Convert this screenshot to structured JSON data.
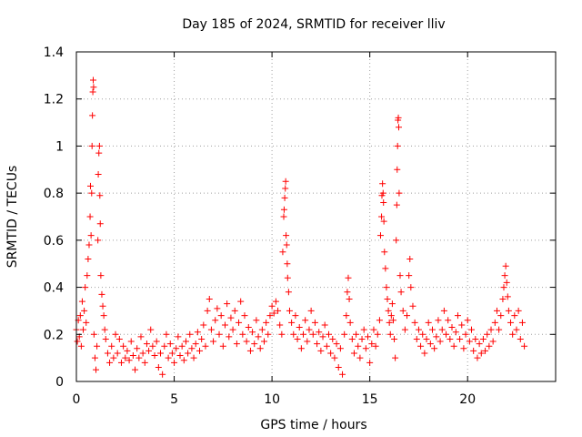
{
  "chart_data": {
    "type": "scatter",
    "title": "Day 185 of 2024, SRMTID for receiver lliv",
    "xlabel": "GPS time / hours",
    "ylabel": "SRMTID / TECUs",
    "xlim": [
      0,
      24.5
    ],
    "ylim": [
      0,
      1.4
    ],
    "xticks": [
      0,
      5,
      10,
      15,
      20
    ],
    "xtick_labels": [
      "0",
      "5",
      "10",
      "15",
      "20"
    ],
    "yticks": [
      0,
      0.2,
      0.4,
      0.6,
      0.8,
      1.0,
      1.2,
      1.4
    ],
    "ytick_labels": [
      "0",
      "0.2",
      "0.4",
      "0.6",
      "0.8",
      "1",
      "1.2",
      "1.4"
    ],
    "grid": true,
    "marker": "+",
    "colors": {
      "series": "#ff0000",
      "grid": "#a0a0a0",
      "axis": "#000000"
    },
    "series": [
      {
        "name": "SRMTID",
        "points": [
          [
            0.0,
            0.22
          ],
          [
            0.05,
            0.17
          ],
          [
            0.1,
            0.26
          ],
          [
            0.15,
            0.19
          ],
          [
            0.2,
            0.28
          ],
          [
            0.25,
            0.15
          ],
          [
            0.3,
            0.34
          ],
          [
            0.35,
            0.22
          ],
          [
            0.4,
            0.3
          ],
          [
            0.45,
            0.4
          ],
          [
            0.5,
            0.25
          ],
          [
            0.55,
            0.45
          ],
          [
            0.6,
            0.52
          ],
          [
            0.65,
            0.58
          ],
          [
            0.7,
            0.7
          ],
          [
            0.72,
            0.83
          ],
          [
            0.75,
            0.62
          ],
          [
            0.78,
            0.8
          ],
          [
            0.8,
            1.0
          ],
          [
            0.82,
            1.13
          ],
          [
            0.84,
            1.23
          ],
          [
            0.86,
            1.28
          ],
          [
            0.88,
            1.25
          ],
          [
            0.9,
            0.2
          ],
          [
            0.95,
            0.1
          ],
          [
            1.0,
            0.05
          ],
          [
            1.05,
            0.15
          ],
          [
            1.1,
            0.6
          ],
          [
            1.12,
            0.88
          ],
          [
            1.15,
            0.97
          ],
          [
            1.18,
            1.0
          ],
          [
            1.2,
            0.79
          ],
          [
            1.22,
            0.67
          ],
          [
            1.25,
            0.45
          ],
          [
            1.3,
            0.37
          ],
          [
            1.35,
            0.32
          ],
          [
            1.4,
            0.28
          ],
          [
            1.45,
            0.22
          ],
          [
            1.5,
            0.18
          ],
          [
            1.6,
            0.12
          ],
          [
            1.7,
            0.08
          ],
          [
            1.8,
            0.15
          ],
          [
            1.9,
            0.1
          ],
          [
            2.0,
            0.2
          ],
          [
            2.1,
            0.12
          ],
          [
            2.2,
            0.18
          ],
          [
            2.3,
            0.08
          ],
          [
            2.4,
            0.15
          ],
          [
            2.5,
            0.1
          ],
          [
            2.6,
            0.13
          ],
          [
            2.7,
            0.09
          ],
          [
            2.8,
            0.17
          ],
          [
            2.9,
            0.11
          ],
          [
            3.0,
            0.05
          ],
          [
            3.1,
            0.14
          ],
          [
            3.2,
            0.1
          ],
          [
            3.3,
            0.19
          ],
          [
            3.4,
            0.12
          ],
          [
            3.5,
            0.08
          ],
          [
            3.6,
            0.16
          ],
          [
            3.7,
            0.13
          ],
          [
            3.8,
            0.22
          ],
          [
            3.9,
            0.15
          ],
          [
            4.0,
            0.11
          ],
          [
            4.1,
            0.17
          ],
          [
            4.2,
            0.06
          ],
          [
            4.3,
            0.12
          ],
          [
            4.4,
            0.03
          ],
          [
            4.5,
            0.15
          ],
          [
            4.6,
            0.2
          ],
          [
            4.7,
            0.1
          ],
          [
            4.8,
            0.16
          ],
          [
            4.9,
            0.12
          ],
          [
            5.0,
            0.08
          ],
          [
            5.1,
            0.14
          ],
          [
            5.2,
            0.19
          ],
          [
            5.3,
            0.11
          ],
          [
            5.4,
            0.15
          ],
          [
            5.5,
            0.09
          ],
          [
            5.6,
            0.17
          ],
          [
            5.7,
            0.12
          ],
          [
            5.8,
            0.2
          ],
          [
            5.9,
            0.14
          ],
          [
            6.0,
            0.1
          ],
          [
            6.1,
            0.16
          ],
          [
            6.2,
            0.21
          ],
          [
            6.3,
            0.13
          ],
          [
            6.4,
            0.18
          ],
          [
            6.5,
            0.24
          ],
          [
            6.6,
            0.15
          ],
          [
            6.7,
            0.3
          ],
          [
            6.8,
            0.35
          ],
          [
            6.9,
            0.22
          ],
          [
            7.0,
            0.17
          ],
          [
            7.1,
            0.26
          ],
          [
            7.2,
            0.31
          ],
          [
            7.3,
            0.2
          ],
          [
            7.4,
            0.28
          ],
          [
            7.5,
            0.15
          ],
          [
            7.6,
            0.24
          ],
          [
            7.7,
            0.33
          ],
          [
            7.8,
            0.19
          ],
          [
            7.9,
            0.27
          ],
          [
            8.0,
            0.22
          ],
          [
            8.1,
            0.3
          ],
          [
            8.2,
            0.16
          ],
          [
            8.3,
            0.25
          ],
          [
            8.4,
            0.34
          ],
          [
            8.5,
            0.2
          ],
          [
            8.6,
            0.28
          ],
          [
            8.7,
            0.17
          ],
          [
            8.8,
            0.23
          ],
          [
            8.9,
            0.13
          ],
          [
            9.0,
            0.21
          ],
          [
            9.1,
            0.16
          ],
          [
            9.2,
            0.26
          ],
          [
            9.3,
            0.19
          ],
          [
            9.4,
            0.14
          ],
          [
            9.5,
            0.22
          ],
          [
            9.6,
            0.17
          ],
          [
            9.7,
            0.25
          ],
          [
            9.8,
            0.2
          ],
          [
            9.9,
            0.28
          ],
          [
            10.0,
            0.32
          ],
          [
            10.1,
            0.29
          ],
          [
            10.2,
            0.34
          ],
          [
            10.3,
            0.3
          ],
          [
            10.4,
            0.24
          ],
          [
            10.5,
            0.2
          ],
          [
            10.55,
            0.55
          ],
          [
            10.6,
            0.7
          ],
          [
            10.62,
            0.73
          ],
          [
            10.65,
            0.78
          ],
          [
            10.68,
            0.82
          ],
          [
            10.7,
            0.85
          ],
          [
            10.72,
            0.62
          ],
          [
            10.75,
            0.58
          ],
          [
            10.78,
            0.5
          ],
          [
            10.8,
            0.44
          ],
          [
            10.85,
            0.38
          ],
          [
            10.9,
            0.3
          ],
          [
            11.0,
            0.25
          ],
          [
            11.1,
            0.2
          ],
          [
            11.2,
            0.28
          ],
          [
            11.3,
            0.18
          ],
          [
            11.4,
            0.23
          ],
          [
            11.5,
            0.14
          ],
          [
            11.6,
            0.2
          ],
          [
            11.7,
            0.26
          ],
          [
            11.8,
            0.17
          ],
          [
            11.9,
            0.22
          ],
          [
            12.0,
            0.3
          ],
          [
            12.1,
            0.2
          ],
          [
            12.2,
            0.25
          ],
          [
            12.3,
            0.16
          ],
          [
            12.4,
            0.21
          ],
          [
            12.5,
            0.13
          ],
          [
            12.6,
            0.19
          ],
          [
            12.7,
            0.24
          ],
          [
            12.8,
            0.15
          ],
          [
            12.9,
            0.2
          ],
          [
            13.0,
            0.12
          ],
          [
            13.1,
            0.18
          ],
          [
            13.2,
            0.1
          ],
          [
            13.3,
            0.16
          ],
          [
            13.4,
            0.06
          ],
          [
            13.5,
            0.14
          ],
          [
            13.6,
            0.03
          ],
          [
            13.7,
            0.2
          ],
          [
            13.8,
            0.28
          ],
          [
            13.85,
            0.38
          ],
          [
            13.9,
            0.44
          ],
          [
            13.95,
            0.35
          ],
          [
            14.0,
            0.25
          ],
          [
            14.1,
            0.18
          ],
          [
            14.2,
            0.12
          ],
          [
            14.3,
            0.2
          ],
          [
            14.4,
            0.15
          ],
          [
            14.5,
            0.1
          ],
          [
            14.6,
            0.18
          ],
          [
            14.7,
            0.22
          ],
          [
            14.8,
            0.14
          ],
          [
            14.9,
            0.19
          ],
          [
            15.0,
            0.08
          ],
          [
            15.1,
            0.16
          ],
          [
            15.2,
            0.22
          ],
          [
            15.3,
            0.15
          ],
          [
            15.4,
            0.2
          ],
          [
            15.5,
            0.26
          ],
          [
            15.55,
            0.62
          ],
          [
            15.6,
            0.7
          ],
          [
            15.62,
            0.79
          ],
          [
            15.65,
            0.84
          ],
          [
            15.68,
            0.8
          ],
          [
            15.7,
            0.76
          ],
          [
            15.72,
            0.68
          ],
          [
            15.75,
            0.55
          ],
          [
            15.8,
            0.48
          ],
          [
            15.85,
            0.4
          ],
          [
            15.9,
            0.35
          ],
          [
            15.95,
            0.3
          ],
          [
            16.0,
            0.25
          ],
          [
            16.05,
            0.2
          ],
          [
            16.1,
            0.28
          ],
          [
            16.15,
            0.33
          ],
          [
            16.2,
            0.26
          ],
          [
            16.25,
            0.18
          ],
          [
            16.3,
            0.1
          ],
          [
            16.35,
            0.6
          ],
          [
            16.38,
            0.75
          ],
          [
            16.4,
            0.9
          ],
          [
            16.42,
            1.0
          ],
          [
            16.44,
            1.11
          ],
          [
            16.46,
            1.12
          ],
          [
            16.48,
            1.08
          ],
          [
            16.5,
            0.8
          ],
          [
            16.55,
            0.45
          ],
          [
            16.6,
            0.38
          ],
          [
            16.7,
            0.3
          ],
          [
            16.8,
            0.22
          ],
          [
            16.9,
            0.28
          ],
          [
            17.0,
            0.45
          ],
          [
            17.05,
            0.52
          ],
          [
            17.1,
            0.4
          ],
          [
            17.2,
            0.32
          ],
          [
            17.3,
            0.25
          ],
          [
            17.4,
            0.18
          ],
          [
            17.5,
            0.22
          ],
          [
            17.6,
            0.15
          ],
          [
            17.7,
            0.2
          ],
          [
            17.8,
            0.12
          ],
          [
            17.9,
            0.18
          ],
          [
            18.0,
            0.25
          ],
          [
            18.1,
            0.16
          ],
          [
            18.2,
            0.22
          ],
          [
            18.3,
            0.14
          ],
          [
            18.4,
            0.19
          ],
          [
            18.5,
            0.26
          ],
          [
            18.6,
            0.17
          ],
          [
            18.7,
            0.22
          ],
          [
            18.8,
            0.3
          ],
          [
            18.9,
            0.2
          ],
          [
            19.0,
            0.26
          ],
          [
            19.1,
            0.18
          ],
          [
            19.2,
            0.23
          ],
          [
            19.3,
            0.15
          ],
          [
            19.4,
            0.21
          ],
          [
            19.5,
            0.28
          ],
          [
            19.6,
            0.18
          ],
          [
            19.7,
            0.24
          ],
          [
            19.8,
            0.14
          ],
          [
            19.9,
            0.2
          ],
          [
            20.0,
            0.26
          ],
          [
            20.1,
            0.17
          ],
          [
            20.2,
            0.22
          ],
          [
            20.3,
            0.13
          ],
          [
            20.4,
            0.18
          ],
          [
            20.5,
            0.1
          ],
          [
            20.6,
            0.16
          ],
          [
            20.7,
            0.12
          ],
          [
            20.8,
            0.18
          ],
          [
            20.9,
            0.13
          ],
          [
            21.0,
            0.2
          ],
          [
            21.1,
            0.15
          ],
          [
            21.2,
            0.22
          ],
          [
            21.3,
            0.17
          ],
          [
            21.4,
            0.25
          ],
          [
            21.5,
            0.3
          ],
          [
            21.6,
            0.22
          ],
          [
            21.7,
            0.28
          ],
          [
            21.8,
            0.35
          ],
          [
            21.85,
            0.4
          ],
          [
            21.9,
            0.45
          ],
          [
            21.95,
            0.49
          ],
          [
            22.0,
            0.42
          ],
          [
            22.05,
            0.36
          ],
          [
            22.1,
            0.3
          ],
          [
            22.2,
            0.25
          ],
          [
            22.3,
            0.2
          ],
          [
            22.4,
            0.28
          ],
          [
            22.5,
            0.22
          ],
          [
            22.6,
            0.3
          ],
          [
            22.7,
            0.18
          ],
          [
            22.8,
            0.25
          ],
          [
            22.9,
            0.15
          ]
        ]
      }
    ]
  }
}
